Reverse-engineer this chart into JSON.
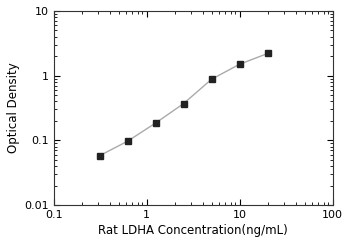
{
  "x_data": [
    0.313,
    0.625,
    1.25,
    2.5,
    5.0,
    10.0,
    20.0
  ],
  "y_data": [
    0.058,
    0.097,
    0.185,
    0.37,
    0.88,
    1.5,
    2.2
  ],
  "xlabel": "Rat LDHA Concentration(ng/mL)",
  "ylabel": "Optical Density",
  "xlim": [
    0.1,
    100
  ],
  "ylim": [
    0.01,
    10
  ],
  "line_color": "#aaaaaa",
  "marker_color": "#222222",
  "marker_style": "s",
  "marker_size": 4,
  "line_width": 1.0,
  "background_color": "#ffffff",
  "xlabel_fontsize": 8.5,
  "ylabel_fontsize": 8.5,
  "tick_fontsize": 8
}
